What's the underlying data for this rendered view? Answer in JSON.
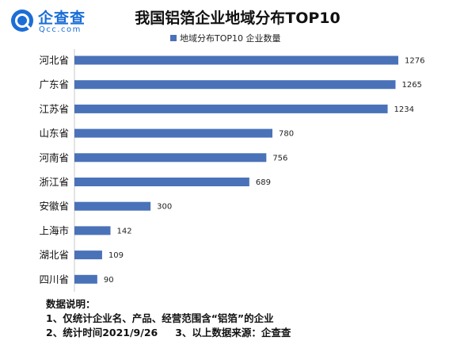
{
  "logo": {
    "cn": "企查查",
    "en": "Qcc.com",
    "color": "#1b6ed6"
  },
  "chart_data": {
    "type": "bar",
    "orientation": "horizontal",
    "title": "我国铝箔企业地域分布TOP10",
    "legend_position": "top",
    "series": [
      {
        "name": "地域分布TOP10 企业数量",
        "color": "#4a72b8",
        "values": [
          1276,
          1265,
          1234,
          780,
          756,
          689,
          300,
          142,
          109,
          90
        ]
      }
    ],
    "categories": [
      "河北省",
      "广东省",
      "江苏省",
      "山东省",
      "河南省",
      "浙江省",
      "安徽省",
      "上海市",
      "湖北省",
      "四川省"
    ],
    "xlim": [
      0,
      1276
    ],
    "grid": false
  },
  "notes": {
    "heading": "数据说明：",
    "line1": "1、仅统计企业名、产品、经营范围含“铝箔”的企业",
    "line2a": "2、统计时间2021/9/26",
    "line2b": "3、以上数据来源：企查查"
  }
}
